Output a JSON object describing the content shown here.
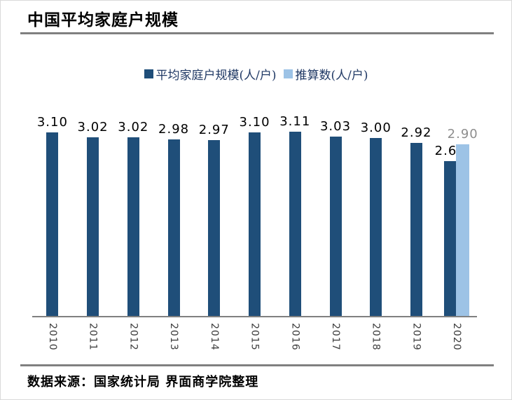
{
  "page": {
    "background": "#FFFFFF",
    "border_color": "#D9D9D9"
  },
  "header": {
    "title": "中国平均家庭户规模",
    "divider_color": "#808080"
  },
  "chart_data": {
    "type": "bar",
    "title": "中国平均家庭户规模",
    "categories": [
      "2010",
      "2011",
      "2012",
      "2013",
      "2014",
      "2015",
      "2016",
      "2017",
      "2018",
      "2019",
      "2020"
    ],
    "series": [
      {
        "name": "平均家庭户规模(人/户)",
        "color": "#1F4E79",
        "label_color": "#000000",
        "values": [
          3.1,
          3.02,
          3.02,
          2.98,
          2.97,
          3.1,
          3.11,
          3.03,
          3.0,
          2.92,
          2.62
        ]
      },
      {
        "name": "推算数(人/户)",
        "color": "#9DC3E6",
        "label_color": "#8E8E8E",
        "values": [
          null,
          null,
          null,
          null,
          null,
          null,
          null,
          null,
          null,
          null,
          2.9
        ]
      }
    ],
    "data_labels": true,
    "value_format": "0.00",
    "xlabel": "",
    "ylabel": "",
    "ylim": [
      0,
      3.55
    ],
    "grid": false,
    "legend_position": "top",
    "x_tick_rotation": 90,
    "axis_line_color": "#808080"
  },
  "footer": {
    "divider_color": "#808080",
    "source": "数据来源：国家统计局 界面商学院整理"
  }
}
